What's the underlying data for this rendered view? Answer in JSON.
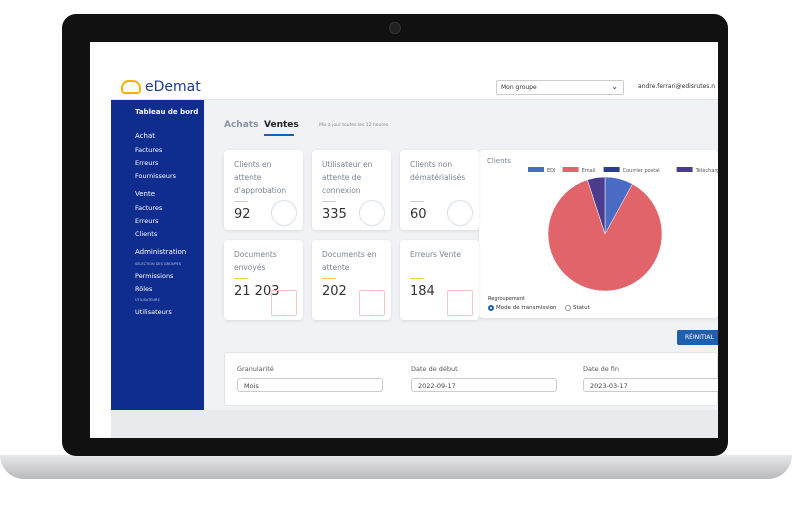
{
  "header": {
    "logo": "eDemat",
    "group_select": "Mon groupe",
    "user": "andre.ferrari@edisrutes.n"
  },
  "sidebar": {
    "items": [
      {
        "label": "Tableau de bord",
        "kind": "main"
      },
      {
        "label": "Achat",
        "kind": "section"
      },
      {
        "label": "Factures",
        "kind": "sub"
      },
      {
        "label": "Erreurs",
        "kind": "sub"
      },
      {
        "label": "Fournisseurs",
        "kind": "sub"
      },
      {
        "label": "Vente",
        "kind": "section"
      },
      {
        "label": "Factures",
        "kind": "sub"
      },
      {
        "label": "Erreurs",
        "kind": "sub"
      },
      {
        "label": "Clients",
        "kind": "sub"
      },
      {
        "label": "Administration",
        "kind": "section"
      },
      {
        "label": "SELECTION DES GROUPES",
        "kind": "caption"
      },
      {
        "label": "Permissions",
        "kind": "sub"
      },
      {
        "label": "Rôles",
        "kind": "sub"
      },
      {
        "label": "UTILISATEURS",
        "kind": "caption"
      },
      {
        "label": "Utilisateurs",
        "kind": "sub"
      }
    ]
  },
  "tabs": {
    "items": [
      "Achats",
      "Ventes"
    ],
    "note": "Mis à jour toutes les 12 heures"
  },
  "cards": [
    {
      "label": "Clients en attente d'approbation",
      "value": "92"
    },
    {
      "label": "Utilisateur en attente de connexion",
      "value": "335"
    },
    {
      "label": "Clients non dématérialisés",
      "value": "60"
    },
    {
      "label": "Documents envoyés",
      "value": "21 203"
    },
    {
      "label": "Documents en attente",
      "value": "202"
    },
    {
      "label": "Erreurs Vente",
      "value": "184"
    }
  ],
  "pie_chart": {
    "type": "pie",
    "title": "Clients",
    "categories": [
      "EDI",
      "Email",
      "Courrier postal",
      "Téléchargement"
    ],
    "values": [
      8,
      87,
      0,
      5
    ],
    "colors": [
      "#4a6cc4",
      "#e0646a",
      "#2b3d8f",
      "#4b3b8c"
    ],
    "grouping_label": "Regroupement",
    "options": [
      "Mode de transmission",
      "Statut"
    ]
  },
  "reset_button": "RÉINITIAL",
  "filters": [
    {
      "label": "Granularité",
      "value": "Mois"
    },
    {
      "label": "Date de début",
      "value": "2022-09-17"
    },
    {
      "label": "Date de fin",
      "value": "2023-03-17"
    }
  ]
}
